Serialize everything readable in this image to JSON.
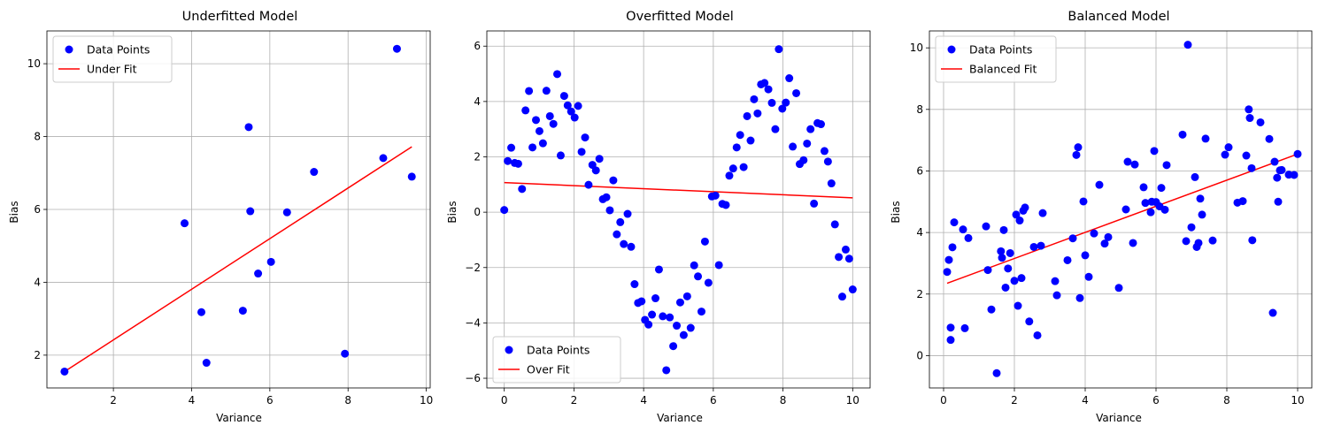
{
  "chart_data": [
    {
      "type": "scatter",
      "title": "Underfitted Model",
      "xlabel": "Variance",
      "ylabel": "Bias",
      "xlim": [
        0.3,
        10.1
      ],
      "ylim": [
        1.1,
        10.9
      ],
      "xticks": [
        2,
        4,
        6,
        8,
        10
      ],
      "yticks": [
        2,
        4,
        6,
        8,
        10
      ],
      "grid": true,
      "legend": {
        "placement": "upper-left",
        "entries": [
          "Data Points",
          "Under Fit"
        ]
      },
      "series": [
        {
          "name": "Data Points",
          "kind": "scatter",
          "color": "#0000ff",
          "x": [
            0.75,
            3.82,
            4.25,
            4.38,
            5.31,
            5.46,
            5.5,
            5.7,
            6.03,
            6.44,
            7.13,
            7.92,
            8.9,
            9.25,
            9.63
          ],
          "y": [
            1.55,
            5.62,
            3.18,
            1.79,
            3.22,
            8.26,
            5.95,
            4.24,
            4.56,
            5.92,
            7.03,
            2.04,
            7.41,
            10.41,
            6.9
          ]
        },
        {
          "name": "Under Fit",
          "kind": "line",
          "color": "#ff0000",
          "x": [
            0.75,
            9.63
          ],
          "y": [
            1.55,
            7.72
          ]
        }
      ]
    },
    {
      "type": "scatter",
      "title": "Overfitted Model",
      "xlabel": "Variance",
      "ylabel": "Bias",
      "xlim": [
        -0.5,
        10.5
      ],
      "ylim": [
        -6.35,
        6.55
      ],
      "xticks": [
        0,
        2,
        4,
        6,
        8,
        10
      ],
      "yticks": [
        -6,
        -4,
        -2,
        0,
        2,
        4,
        6
      ],
      "grid": true,
      "legend": {
        "placement": "lower-left",
        "entries": [
          "Data Points",
          "Over Fit"
        ]
      },
      "series": [
        {
          "name": "Data Points",
          "kind": "scatter",
          "color": "#0000ff",
          "x": [
            0.0,
            0.1,
            0.2,
            0.3,
            0.4,
            0.51,
            0.61,
            0.71,
            0.81,
            0.91,
            1.01,
            1.11,
            1.21,
            1.31,
            1.41,
            1.52,
            1.62,
            1.72,
            1.82,
            1.92,
            2.02,
            2.12,
            2.22,
            2.32,
            2.42,
            2.53,
            2.63,
            2.73,
            2.83,
            2.93,
            3.03,
            3.13,
            3.23,
            3.33,
            3.43,
            3.54,
            3.64,
            3.74,
            3.84,
            3.94,
            4.04,
            4.14,
            4.24,
            4.34,
            4.44,
            4.55,
            4.65,
            4.75,
            4.85,
            4.95,
            5.05,
            5.15,
            5.25,
            5.35,
            5.45,
            5.56,
            5.66,
            5.76,
            5.86,
            5.96,
            6.06,
            6.16,
            6.26,
            6.36,
            6.46,
            6.57,
            6.67,
            6.77,
            6.87,
            6.97,
            7.07,
            7.17,
            7.27,
            7.37,
            7.47,
            7.58,
            7.68,
            7.78,
            7.88,
            7.98,
            8.08,
            8.18,
            8.28,
            8.38,
            8.48,
            8.59,
            8.69,
            8.79,
            8.89,
            8.99,
            9.09,
            9.19,
            9.29,
            9.39,
            9.49,
            9.6,
            9.7,
            9.8,
            9.9,
            10.0
          ],
          "y": [
            0.08,
            1.85,
            2.33,
            1.78,
            1.75,
            0.84,
            3.68,
            4.38,
            2.34,
            3.33,
            2.93,
            2.49,
            4.39,
            3.47,
            3.19,
            4.99,
            2.05,
            4.2,
            3.86,
            3.64,
            3.42,
            3.84,
            2.18,
            2.7,
            0.99,
            1.71,
            1.51,
            1.93,
            0.47,
            0.54,
            0.07,
            1.15,
            -0.8,
            -0.36,
            -1.15,
            -0.06,
            -1.25,
            -2.6,
            -3.28,
            -3.22,
            -3.89,
            -4.06,
            -3.7,
            -3.11,
            -2.07,
            -3.76,
            -5.71,
            -3.8,
            -4.84,
            -4.1,
            -3.26,
            -4.44,
            -3.04,
            -4.18,
            -1.92,
            -2.32,
            -3.59,
            -1.06,
            -2.55,
            0.57,
            0.6,
            -1.91,
            0.3,
            0.26,
            1.32,
            1.58,
            2.34,
            2.79,
            1.63,
            3.47,
            2.59,
            4.08,
            3.57,
            4.62,
            4.67,
            4.44,
            3.95,
            3.0,
            5.89,
            3.74,
            3.96,
            4.84,
            2.37,
            4.3,
            1.74,
            1.88,
            2.48,
            3.0,
            0.31,
            3.22,
            3.18,
            2.21,
            1.83,
            1.04,
            -0.44,
            -1.62,
            -3.05,
            -1.35,
            -1.68,
            -2.79
          ]
        },
        {
          "name": "Over Fit",
          "kind": "line",
          "color": "#ff0000",
          "x": [
            0.0,
            10.0
          ],
          "y": [
            1.07,
            0.52
          ]
        }
      ]
    },
    {
      "type": "scatter",
      "title": "Balanced Model",
      "xlabel": "Variance",
      "ylabel": "Bias",
      "xlim": [
        -0.4,
        10.4
      ],
      "ylim": [
        -1.05,
        10.55
      ],
      "xticks": [
        0,
        2,
        4,
        6,
        8,
        10
      ],
      "yticks": [
        0,
        2,
        4,
        6,
        8,
        10
      ],
      "grid": true,
      "legend": {
        "placement": "upper-left",
        "entries": [
          "Data Points",
          "Balanced Fit"
        ]
      },
      "series": [
        {
          "name": "Data Points",
          "kind": "scatter",
          "color": "#0000ff",
          "x": [
            0.1,
            0.15,
            0.2,
            0.25,
            0.3,
            0.2,
            0.55,
            0.6,
            0.7,
            1.2,
            1.25,
            1.35,
            1.5,
            1.62,
            1.65,
            1.7,
            1.75,
            1.82,
            1.88,
            2.0,
            2.05,
            2.1,
            2.15,
            2.2,
            2.25,
            2.3,
            2.42,
            2.55,
            2.65,
            2.75,
            2.8,
            3.15,
            3.2,
            3.5,
            3.65,
            3.75,
            3.8,
            3.85,
            3.95,
            4.0,
            4.1,
            4.25,
            4.4,
            4.55,
            4.65,
            4.95,
            5.15,
            5.2,
            5.35,
            5.4,
            5.65,
            5.7,
            5.85,
            5.88,
            5.95,
            6.0,
            6.1,
            6.15,
            6.25,
            6.3,
            6.75,
            6.85,
            6.9,
            7.0,
            7.1,
            7.15,
            7.2,
            7.25,
            7.3,
            7.4,
            7.6,
            7.95,
            8.05,
            8.3,
            8.45,
            8.55,
            8.62,
            8.65,
            8.7,
            8.72,
            8.95,
            9.2,
            9.3,
            9.35,
            9.42,
            9.45,
            9.5,
            9.55,
            9.75,
            9.9,
            10.0
          ],
          "y": [
            2.72,
            3.11,
            0.91,
            3.52,
            4.33,
            0.51,
            4.1,
            0.89,
            3.82,
            4.2,
            2.78,
            1.5,
            -0.57,
            3.39,
            3.18,
            4.08,
            2.21,
            2.83,
            3.33,
            2.43,
            4.58,
            1.62,
            4.39,
            2.52,
            4.71,
            4.81,
            1.11,
            3.53,
            0.66,
            3.57,
            4.63,
            2.42,
            1.96,
            3.1,
            3.81,
            6.52,
            6.77,
            1.87,
            5.01,
            3.26,
            2.56,
            3.97,
            5.55,
            3.64,
            3.85,
            2.2,
            4.75,
            6.3,
            3.66,
            6.21,
            5.47,
            4.96,
            4.66,
            5.0,
            6.65,
            4.99,
            4.85,
            5.45,
            4.74,
            6.19,
            7.18,
            3.72,
            10.1,
            4.17,
            5.8,
            3.53,
            3.66,
            5.1,
            4.58,
            7.05,
            3.74,
            6.53,
            6.77,
            4.97,
            5.02,
            6.5,
            8.0,
            7.72,
            6.09,
            3.75,
            7.58,
            7.04,
            1.39,
            6.3,
            5.78,
            5.0,
            6.02,
            6.03,
            5.88,
            5.87,
            6.55
          ]
        },
        {
          "name": "Balanced Fit",
          "kind": "line",
          "color": "#ff0000",
          "x": [
            0.1,
            10.0
          ],
          "y": [
            2.35,
            6.55
          ]
        }
      ]
    }
  ]
}
